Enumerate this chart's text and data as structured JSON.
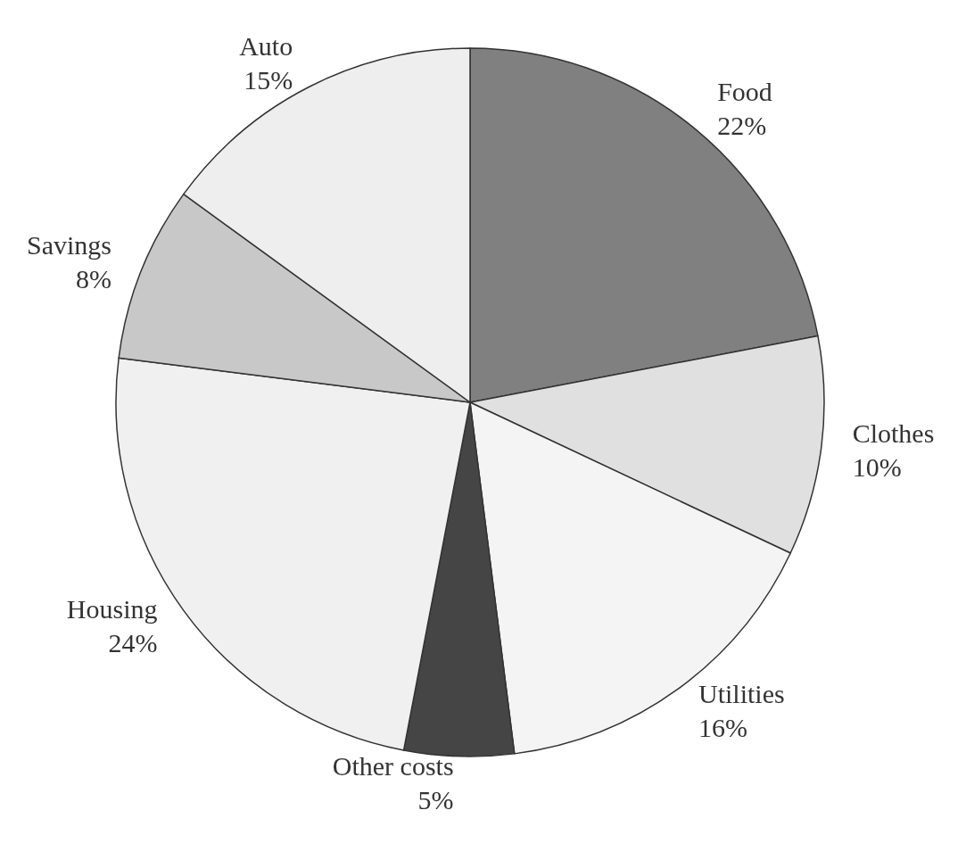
{
  "chart_data": {
    "type": "pie",
    "categories": [
      "Food",
      "Clothes",
      "Utilities",
      "Other costs",
      "Housing",
      "Savings",
      "Auto"
    ],
    "values": [
      22,
      10,
      16,
      5,
      24,
      8,
      15
    ],
    "colors": [
      "#808080",
      "#e0e0e0",
      "#f4f4f4",
      "#454545",
      "#f0f0f0",
      "#c8c8c8",
      "#eeeeee"
    ],
    "value_labels": [
      "22%",
      "10%",
      "16%",
      "5%",
      "24%",
      "8%",
      "15%"
    ]
  }
}
